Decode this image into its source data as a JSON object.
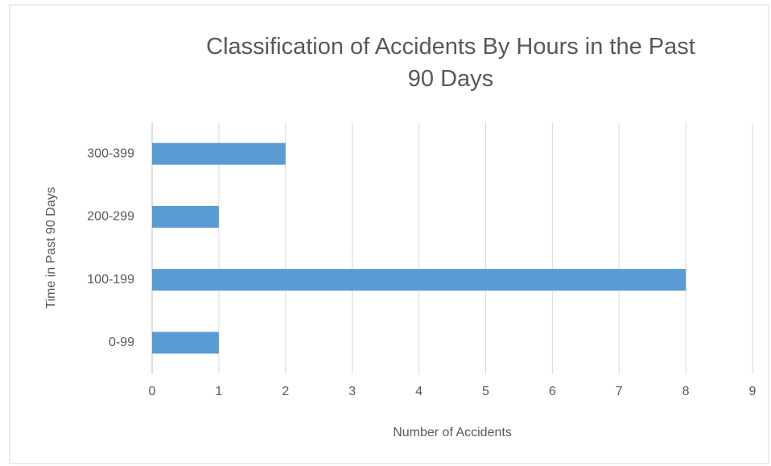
{
  "chart_data": {
    "type": "bar",
    "orientation": "horizontal",
    "title": "Classification of Accidents By Hours in the Past 90 Days",
    "x_label": "Number of Accidents",
    "y_label": "Time in Past 90 Days",
    "categories": [
      "0-99",
      "100-199",
      "200-299",
      "300-399"
    ],
    "values": [
      1,
      8,
      1,
      2
    ],
    "color": "#5b9bd5",
    "xlim": [
      0,
      9
    ],
    "xticks": [
      0,
      1,
      2,
      3,
      4,
      5,
      6,
      7,
      8,
      9
    ],
    "grid": true
  }
}
